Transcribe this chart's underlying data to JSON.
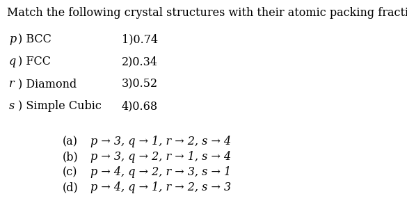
{
  "title": "Match the following crystal structures with their atomic packing fraction.",
  "left_letters": [
    "p",
    "q",
    "r",
    "s"
  ],
  "left_texts": [
    ") BCC",
    ") FCC",
    ") Diamond",
    ") Simple Cubic"
  ],
  "right_texts": [
    "1)0.74",
    "2)0.34",
    "3)0.52",
    "4)0.68"
  ],
  "opt_labels": [
    "(a)",
    "(b)",
    "(c)",
    "(d)"
  ],
  "opt_texts": [
    "p → 3, q → 1, r → 2, s → 4",
    "p → 3, q → 2, r → 1, s → 4",
    "p → 4, q → 2, r → 3, s → 1",
    "p → 4, q → 1, r → 2, s → 3"
  ],
  "bg_color": "#ffffff",
  "text_color": "#000000",
  "font_size": 11.5
}
